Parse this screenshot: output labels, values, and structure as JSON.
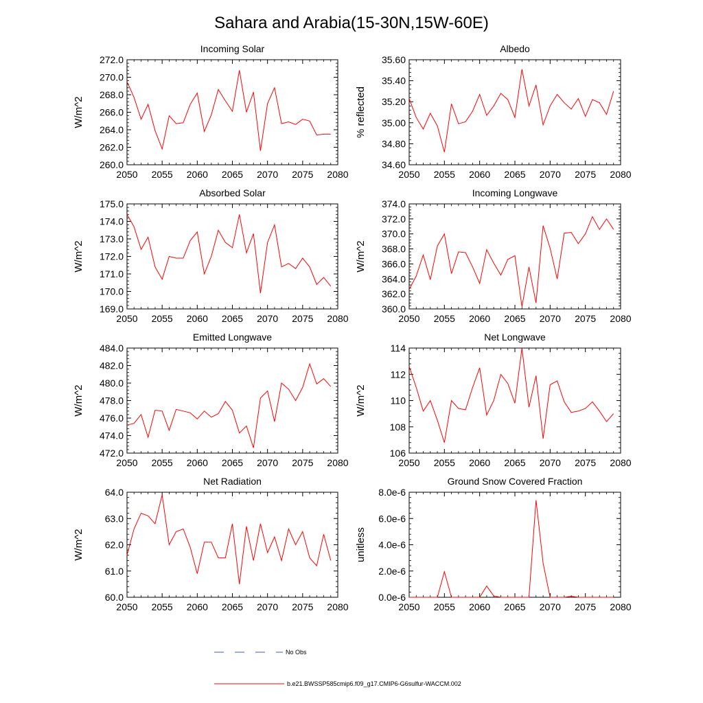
{
  "figure": {
    "title": "Sahara and Arabia(15-30N,15W-60E)"
  },
  "legend": {
    "entries": [
      {
        "label": "No Obs",
        "color": "#3b5bc4",
        "style": "dashed"
      },
      {
        "label": "b.e21.BWSSP585cmip6.f09_g17.CMIP6-G6sulfur-WACCM.002",
        "color": "#ff0000",
        "style": "solid"
      }
    ]
  },
  "chart_data": [
    {
      "type": "line",
      "title": "Incoming Solar",
      "ylabel": "W/m^2",
      "xlim": [
        2050,
        2080
      ],
      "ylim": [
        260.0,
        272.0
      ],
      "xticks": [
        "2050",
        "2055",
        "2060",
        "2065",
        "2070",
        "2075",
        "2080"
      ],
      "yticks": [
        "260.0",
        "262.0",
        "264.0",
        "266.0",
        "268.0",
        "270.0",
        "272.0"
      ],
      "x": [
        2050,
        2051,
        2052,
        2053,
        2054,
        2055,
        2056,
        2057,
        2058,
        2059,
        2060,
        2061,
        2062,
        2063,
        2064,
        2065,
        2066,
        2067,
        2068,
        2069,
        2070,
        2071,
        2072,
        2073,
        2074,
        2075,
        2076,
        2077,
        2078,
        2079
      ],
      "values": [
        269.5,
        267.7,
        265.2,
        266.9,
        263.9,
        261.8,
        265.6,
        264.7,
        264.8,
        266.9,
        268.2,
        263.8,
        265.7,
        268.6,
        267.3,
        266.1,
        270.8,
        266.0,
        268.3,
        261.6,
        267.0,
        268.8,
        264.7,
        264.9,
        264.6,
        265.2,
        265.0,
        263.4,
        263.5,
        263.5
      ]
    },
    {
      "type": "line",
      "title": "Albedo",
      "ylabel": "% reflected",
      "xlim": [
        2050,
        2080
      ],
      "ylim": [
        34.6,
        35.6
      ],
      "xticks": [
        "2050",
        "2055",
        "2060",
        "2065",
        "2070",
        "2075",
        "2080"
      ],
      "yticks": [
        "34.60",
        "34.80",
        "35.00",
        "35.20",
        "35.40",
        "35.60"
      ],
      "x": [
        2050,
        2051,
        2052,
        2053,
        2054,
        2055,
        2056,
        2057,
        2058,
        2059,
        2060,
        2061,
        2062,
        2063,
        2064,
        2065,
        2066,
        2067,
        2068,
        2069,
        2070,
        2071,
        2072,
        2073,
        2074,
        2075,
        2076,
        2077,
        2078,
        2079
      ],
      "values": [
        35.23,
        35.05,
        34.94,
        35.09,
        34.97,
        34.72,
        35.18,
        34.99,
        35.01,
        35.11,
        35.27,
        35.07,
        35.16,
        35.28,
        35.22,
        35.05,
        35.51,
        35.16,
        35.36,
        34.98,
        35.16,
        35.27,
        35.19,
        35.13,
        35.23,
        35.06,
        35.22,
        35.19,
        35.08,
        35.3
      ]
    },
    {
      "type": "line",
      "title": "Absorbed Solar",
      "ylabel": "W/m^2",
      "xlim": [
        2050,
        2080
      ],
      "ylim": [
        169.0,
        175.0
      ],
      "xticks": [
        "2050",
        "2055",
        "2060",
        "2065",
        "2070",
        "2075",
        "2080"
      ],
      "yticks": [
        "169.0",
        "170.0",
        "171.0",
        "172.0",
        "173.0",
        "174.0",
        "175.0"
      ],
      "x": [
        2050,
        2051,
        2052,
        2053,
        2054,
        2055,
        2056,
        2057,
        2058,
        2059,
        2060,
        2061,
        2062,
        2063,
        2064,
        2065,
        2066,
        2067,
        2068,
        2069,
        2070,
        2071,
        2072,
        2073,
        2074,
        2075,
        2076,
        2077,
        2078,
        2079
      ],
      "values": [
        174.4,
        173.7,
        172.4,
        173.1,
        171.4,
        170.7,
        172.0,
        171.9,
        171.9,
        172.9,
        173.4,
        171.0,
        172.0,
        173.5,
        172.8,
        172.5,
        174.4,
        172.2,
        173.3,
        169.9,
        172.8,
        173.8,
        171.4,
        171.6,
        171.3,
        171.9,
        171.4,
        170.4,
        170.8,
        170.3
      ]
    },
    {
      "type": "line",
      "title": "Incoming Longwave",
      "ylabel": "W/m^2",
      "xlim": [
        2050,
        2080
      ],
      "ylim": [
        360.0,
        374.0
      ],
      "xticks": [
        "2050",
        "2055",
        "2060",
        "2065",
        "2070",
        "2075",
        "2080"
      ],
      "yticks": [
        "360.0",
        "362.0",
        "364.0",
        "366.0",
        "368.0",
        "370.0",
        "372.0",
        "374.0"
      ],
      "x": [
        2050,
        2051,
        2052,
        2053,
        2054,
        2055,
        2056,
        2057,
        2058,
        2059,
        2060,
        2061,
        2062,
        2063,
        2064,
        2065,
        2066,
        2067,
        2068,
        2069,
        2070,
        2071,
        2072,
        2073,
        2074,
        2075,
        2076,
        2077,
        2078,
        2079
      ],
      "values": [
        362.6,
        364.4,
        367.2,
        363.9,
        368.4,
        370.0,
        364.7,
        367.6,
        367.5,
        365.6,
        363.4,
        367.9,
        366.1,
        364.5,
        366.6,
        367.1,
        360.3,
        365.6,
        360.8,
        371.1,
        368.1,
        364.0,
        370.1,
        370.2,
        368.7,
        370.0,
        372.3,
        370.6,
        372.0,
        370.6
      ]
    },
    {
      "type": "line",
      "title": "Emitted Longwave",
      "ylabel": "W/m^2",
      "xlim": [
        2050,
        2080
      ],
      "ylim": [
        472.0,
        484.0
      ],
      "xticks": [
        "2050",
        "2055",
        "2060",
        "2065",
        "2070",
        "2075",
        "2080"
      ],
      "yticks": [
        "472.0",
        "474.0",
        "476.0",
        "478.0",
        "480.0",
        "482.0",
        "484.0"
      ],
      "x": [
        2050,
        2051,
        2052,
        2053,
        2054,
        2055,
        2056,
        2057,
        2058,
        2059,
        2060,
        2061,
        2062,
        2063,
        2064,
        2065,
        2066,
        2067,
        2068,
        2069,
        2070,
        2071,
        2072,
        2073,
        2074,
        2075,
        2076,
        2077,
        2078,
        2079
      ],
      "values": [
        475.2,
        475.4,
        476.4,
        473.8,
        476.9,
        476.8,
        474.6,
        477.0,
        476.8,
        476.6,
        475.9,
        476.8,
        476.1,
        476.5,
        477.9,
        476.9,
        474.3,
        475.1,
        472.6,
        478.3,
        479.1,
        475.6,
        480.0,
        479.3,
        478.0,
        479.5,
        482.2,
        479.9,
        480.5,
        479.6
      ]
    },
    {
      "type": "line",
      "title": "Net Longwave",
      "ylabel": "W/m^2",
      "xlim": [
        2050,
        2080
      ],
      "ylim": [
        106,
        114
      ],
      "xticks": [
        "2050",
        "2055",
        "2060",
        "2065",
        "2070",
        "2075",
        "2080"
      ],
      "yticks": [
        "106",
        "108",
        "110",
        "112",
        "114"
      ],
      "x": [
        2050,
        2051,
        2052,
        2053,
        2054,
        2055,
        2056,
        2057,
        2058,
        2059,
        2060,
        2061,
        2062,
        2063,
        2064,
        2065,
        2066,
        2067,
        2068,
        2069,
        2070,
        2071,
        2072,
        2073,
        2074,
        2075,
        2076,
        2077,
        2078,
        2079
      ],
      "values": [
        112.6,
        111.0,
        109.2,
        110.0,
        108.5,
        106.8,
        110.0,
        109.4,
        109.3,
        111.0,
        112.5,
        108.9,
        110.0,
        112.0,
        111.3,
        109.8,
        114.0,
        109.5,
        111.9,
        107.1,
        111.2,
        111.5,
        109.9,
        109.1,
        109.2,
        109.4,
        109.9,
        109.2,
        108.4,
        109.0
      ]
    },
    {
      "type": "line",
      "title": "Net Radiation",
      "ylabel": "W/m^2",
      "xlim": [
        2050,
        2080
      ],
      "ylim": [
        60.0,
        64.0
      ],
      "xticks": [
        "2050",
        "2055",
        "2060",
        "2065",
        "2070",
        "2075",
        "2080"
      ],
      "yticks": [
        "60.0",
        "61.0",
        "62.0",
        "63.0",
        "64.0"
      ],
      "x": [
        2050,
        2051,
        2052,
        2053,
        2054,
        2055,
        2056,
        2057,
        2058,
        2059,
        2060,
        2061,
        2062,
        2063,
        2064,
        2065,
        2066,
        2067,
        2068,
        2069,
        2070,
        2071,
        2072,
        2073,
        2074,
        2075,
        2076,
        2077,
        2078,
        2079
      ],
      "values": [
        61.6,
        62.6,
        63.2,
        63.1,
        62.8,
        63.9,
        62.0,
        62.5,
        62.6,
        61.9,
        60.9,
        62.1,
        62.1,
        61.5,
        61.5,
        62.8,
        60.5,
        62.7,
        61.4,
        62.8,
        61.7,
        62.3,
        61.4,
        62.6,
        62.0,
        62.5,
        61.5,
        61.2,
        62.4,
        61.4
      ]
    },
    {
      "type": "line",
      "title": "Ground Snow Covered Fraction",
      "ylabel": "unitless",
      "xlim": [
        2050,
        2080
      ],
      "ylim": [
        0,
        8e-06
      ],
      "xticks": [
        "2050",
        "2055",
        "2060",
        "2065",
        "2070",
        "2075",
        "2080"
      ],
      "yticks": [
        "0.0e-6",
        "2.0e-6",
        "4.0e-6",
        "6.0e-6",
        "8.0e-6"
      ],
      "x": [
        2050,
        2051,
        2052,
        2053,
        2054,
        2055,
        2056,
        2057,
        2058,
        2059,
        2060,
        2061,
        2062,
        2063,
        2064,
        2065,
        2066,
        2067,
        2068,
        2069,
        2070,
        2071,
        2072,
        2073,
        2074,
        2075,
        2076,
        2077,
        2078,
        2079
      ],
      "values": [
        0,
        0,
        0,
        0,
        0,
        1.95e-06,
        0,
        0,
        0,
        0,
        0,
        8.5e-07,
        1e-07,
        0,
        0,
        0,
        0,
        0,
        7.4e-06,
        2.6e-06,
        0,
        0,
        0,
        8e-08,
        0,
        0,
        0,
        0,
        0,
        0
      ]
    }
  ]
}
